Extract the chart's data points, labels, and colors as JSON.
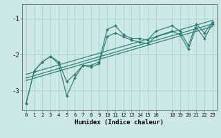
{
  "xlabel": "Humidex (Indice chaleur)",
  "bg_color": "#cce8e4",
  "line_color": "#2e7d72",
  "grid_color": "#a8d4ce",
  "xlim": [
    -0.5,
    23.5
  ],
  "ylim": [
    -3.55,
    -0.6
  ],
  "yticks": [
    -3,
    -2,
    -1
  ],
  "xticks": [
    0,
    1,
    2,
    3,
    4,
    5,
    6,
    7,
    8,
    9,
    10,
    11,
    12,
    13,
    14,
    15,
    16,
    18,
    19,
    20,
    21,
    22,
    23
  ],
  "line1_x": [
    0,
    1,
    2,
    3,
    4,
    5,
    6,
    7,
    8,
    9,
    10,
    11,
    12,
    13,
    14,
    15,
    16,
    18,
    19,
    20,
    21,
    22,
    23
  ],
  "line1_y": [
    -3.35,
    -2.45,
    -2.2,
    -2.05,
    -2.2,
    -2.75,
    -2.55,
    -2.3,
    -2.3,
    -2.2,
    -1.3,
    -1.2,
    -1.45,
    -1.55,
    -1.55,
    -1.6,
    -1.35,
    -1.2,
    -1.35,
    -1.75,
    -1.15,
    -1.4,
    -1.1
  ],
  "line2_x": [
    0,
    1,
    2,
    3,
    4,
    5,
    6,
    7,
    8,
    9,
    10,
    11,
    12,
    13,
    14,
    15,
    16,
    18,
    19,
    20,
    21,
    22,
    23
  ],
  "line2_y": [
    -3.35,
    -2.45,
    -2.2,
    -2.05,
    -2.25,
    -3.15,
    -2.65,
    -2.3,
    -2.35,
    -2.25,
    -1.5,
    -1.4,
    -1.5,
    -1.6,
    -1.65,
    -1.7,
    -1.5,
    -1.35,
    -1.45,
    -1.85,
    -1.25,
    -1.55,
    -1.15
  ],
  "trend_lines": [
    {
      "x": [
        0,
        23
      ],
      "y": [
        -2.55,
        -1.05
      ]
    },
    {
      "x": [
        0,
        23
      ],
      "y": [
        -2.65,
        -1.15
      ]
    },
    {
      "x": [
        0,
        23
      ],
      "y": [
        -2.72,
        -1.22
      ]
    }
  ]
}
